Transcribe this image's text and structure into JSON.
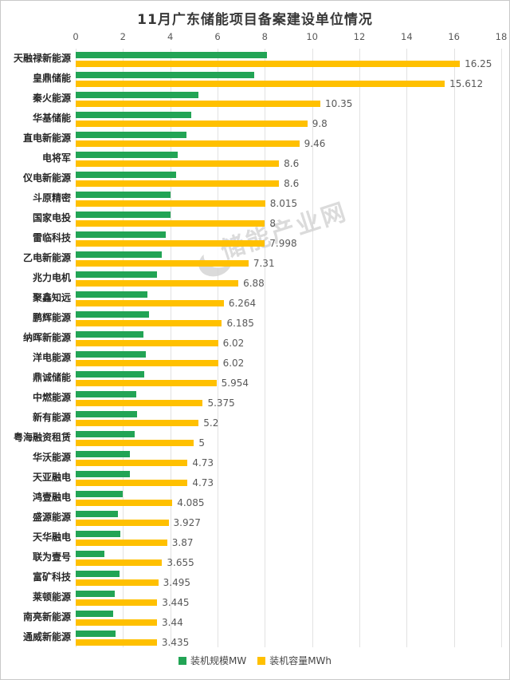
{
  "title": "11月广东储能项目备案建设单位情况",
  "watermark": "储能产业网",
  "chart_data": {
    "type": "bar",
    "orientation": "horizontal",
    "title": "11月广东储能项目备案建设单位情况",
    "xlabel": "",
    "ylabel": "",
    "grid": true,
    "legend_position": "bottom",
    "axis": {
      "min": 0,
      "max": 18,
      "step": 2,
      "position": "top",
      "ticks": [
        0,
        2,
        4,
        6,
        8,
        10,
        12,
        14,
        16,
        18
      ]
    },
    "categories": [
      "天融禄新能源",
      "皇鼎储能",
      "秦火能源",
      "华基储能",
      "直电新能源",
      "电将军",
      "仪电新能源",
      "斗原精密",
      "国家电投",
      "雷临科技",
      "乙电新能源",
      "兆力电机",
      "聚鑫知远",
      "鹏辉能源",
      "纳晖新能源",
      "洋电能源",
      "鼎诚储能",
      "中燃能源",
      "新有能源",
      "粤海融资租赁",
      "华沃能源",
      "天亚融电",
      "鸿壹融电",
      "盛源能源",
      "天华融电",
      "联为壹号",
      "富矿科技",
      "莱顿能源",
      "南亮新能源",
      "通威新能源"
    ],
    "series": [
      {
        "name": "装机规模MW",
        "color": "#22A455",
        "values": [
          8.1,
          7.55,
          5.2,
          4.9,
          4.7,
          4.3,
          4.25,
          4.0,
          4.0,
          3.8,
          3.65,
          3.44,
          3.05,
          3.1,
          2.85,
          2.95,
          2.9,
          2.55,
          2.6,
          2.5,
          2.3,
          2.3,
          2.0,
          1.8,
          1.9,
          1.2,
          1.85,
          1.65,
          1.6,
          1.7
        ]
      },
      {
        "name": "装机容量MWh",
        "color": "#FFC000",
        "values": [
          16.25,
          15.612,
          10.35,
          9.8,
          9.46,
          8.6,
          8.6,
          8.015,
          8,
          7.998,
          7.31,
          6.88,
          6.264,
          6.185,
          6.02,
          6.02,
          5.954,
          5.375,
          5.2,
          5,
          4.73,
          4.73,
          4.085,
          3.927,
          3.87,
          3.655,
          3.495,
          3.445,
          3.44,
          3.435
        ],
        "data_labels": [
          "16.25",
          "15.612",
          "10.35",
          "9.8",
          "9.46",
          "8.6",
          "8.6",
          "8.015",
          "8",
          "7.998",
          "7.31",
          "6.88",
          "6.264",
          "6.185",
          "6.02",
          "6.02",
          "5.954",
          "5.375",
          "5.2",
          "5",
          "4.73",
          "4.73",
          "4.085",
          "3.927",
          "3.87",
          "3.655",
          "3.495",
          "3.445",
          "3.44",
          "3.435"
        ]
      }
    ]
  },
  "colors": {
    "mw_green": "#22A455",
    "mwh_yellow": "#FFC000",
    "gridline": "#e2e2e2",
    "axis_text": "#595959",
    "title_text": "#383838",
    "watermark_grey": "#d5d5d5"
  }
}
